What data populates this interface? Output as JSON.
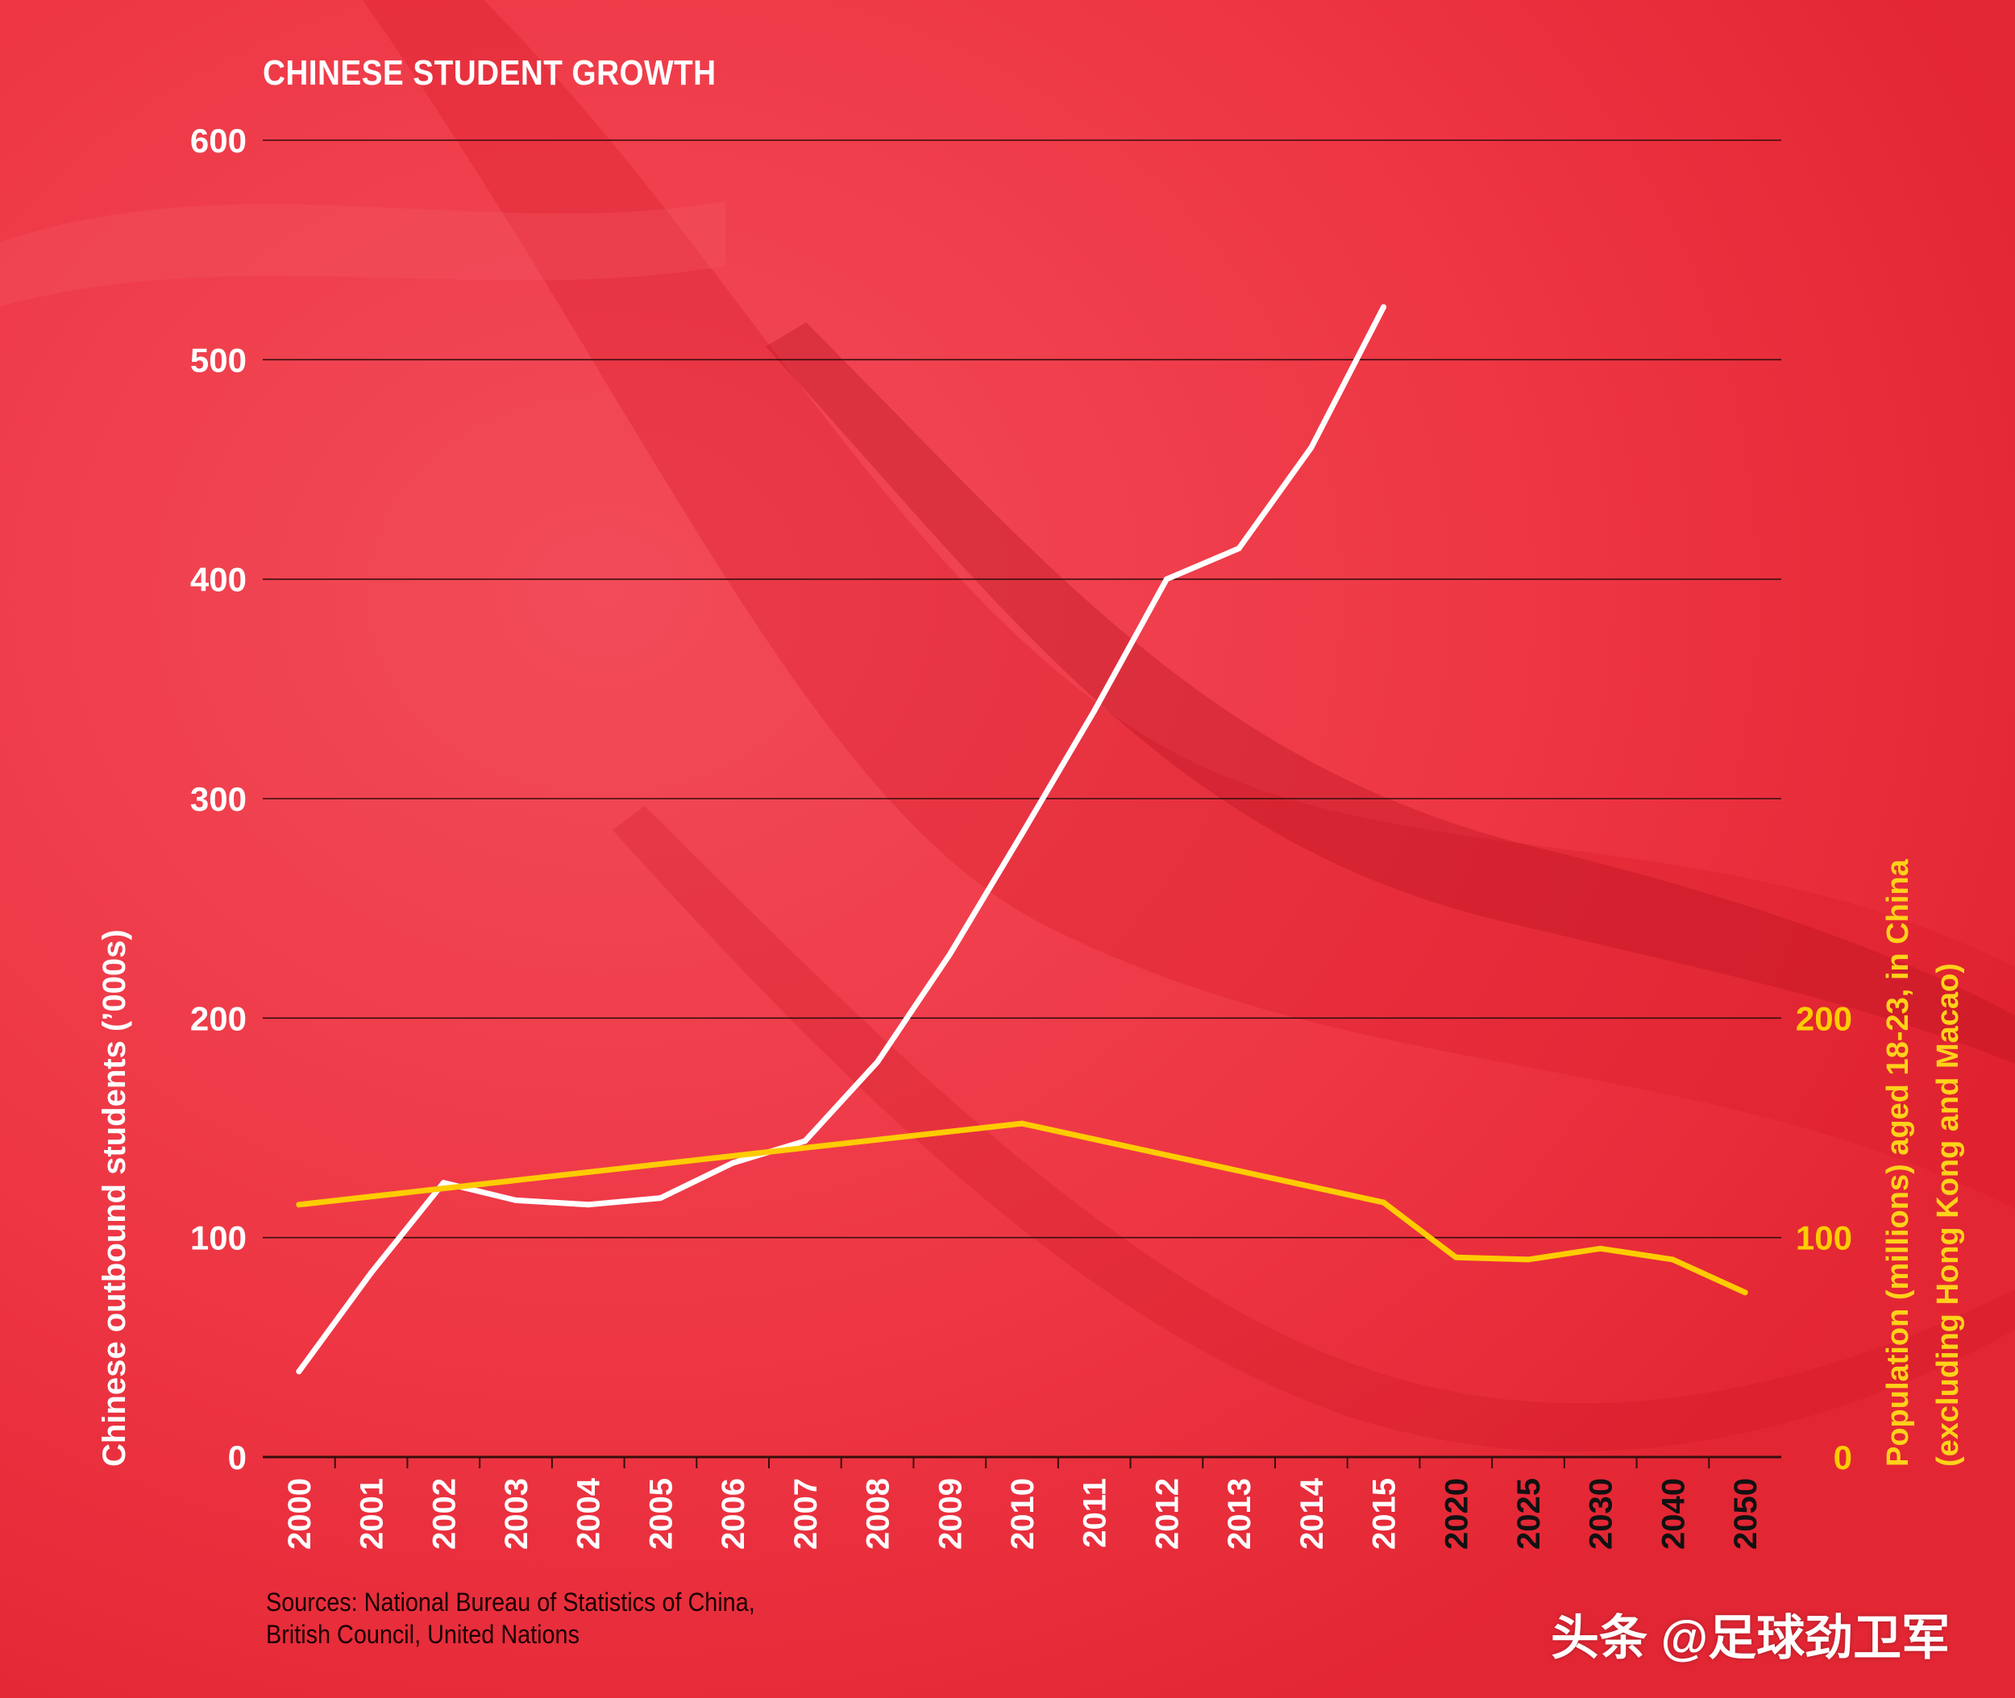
{
  "chart_data": {
    "type": "line",
    "title": "CHINESE STUDENT GROWTH",
    "categories": [
      "2000",
      "2001",
      "2002",
      "2003",
      "2004",
      "2005",
      "2006",
      "2007",
      "2008",
      "2009",
      "2010",
      "2011",
      "2012",
      "2013",
      "2014",
      "2015",
      "2020",
      "2025",
      "2030",
      "2040",
      "2050"
    ],
    "ylabel_left": "Chinese outbound students  (’000s)",
    "ylabel_right": [
      "Population (millions) aged 18-23, in China",
      "(excluding Hong Kong and Macao)"
    ],
    "ylim_left": [
      0,
      600
    ],
    "yticks_left": [
      0,
      100,
      200,
      300,
      400,
      500,
      600
    ],
    "ylim_right": [
      0,
      600
    ],
    "yticks_right": [
      0,
      100,
      200
    ],
    "grid": true,
    "series": [
      {
        "name": "Chinese outbound students",
        "axis": "left",
        "color": "#ffffff",
        "values": [
          39,
          84,
          125,
          117,
          115,
          118,
          134,
          144,
          180,
          229,
          284,
          340,
          400,
          414,
          460,
          524,
          null,
          null,
          null,
          null,
          null
        ]
      },
      {
        "name": "Population aged 18-23",
        "axis": "right",
        "color": "#ffcc00",
        "values": [
          115,
          null,
          null,
          null,
          null,
          null,
          null,
          null,
          null,
          null,
          152,
          null,
          null,
          null,
          null,
          116,
          91,
          90,
          95,
          90,
          75
        ]
      }
    ],
    "xtick_colors": {
      "actual": "#ffffff",
      "projected": "#111111"
    }
  },
  "sources": [
    "Sources: National Bureau of Statistics of China,",
    "British Council, United Nations"
  ],
  "watermark": "头条 @足球劲卫军",
  "colors": {
    "background": "#ec2f3d",
    "white_line": "#ffffff",
    "yellow_line": "#ffcc00",
    "grid": "#3a0d0d"
  }
}
